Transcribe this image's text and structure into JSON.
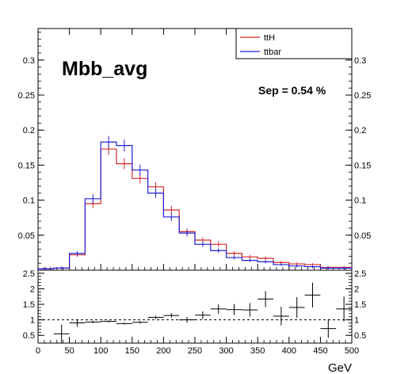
{
  "chart_data": {
    "type": "histogram",
    "title": "Mbb_avg",
    "annotation": "Sep = 0.54 %",
    "xlabel": "GeV",
    "legend": {
      "placement": "top-right",
      "entries": [
        {
          "name": "ttH",
          "color": "#d62728"
        },
        {
          "name": "ttbar",
          "color": "#1f1fd6"
        }
      ]
    },
    "x_range": [
      0,
      500
    ],
    "bin_width": 25,
    "bin_edges": [
      0,
      25,
      50,
      75,
      100,
      125,
      150,
      175,
      200,
      225,
      250,
      275,
      300,
      325,
      350,
      375,
      400,
      425,
      450,
      475,
      500
    ],
    "main": {
      "ylim": [
        0,
        0.345
      ],
      "yticks": [
        0.05,
        0.1,
        0.15,
        0.2,
        0.25,
        0.3
      ],
      "ytick_labels": [
        "0.05",
        "0.1",
        "0.15",
        "0.2",
        "0.25",
        "0.3"
      ],
      "series": [
        {
          "name": "ttH",
          "color": "#d62728",
          "values": [
            0.002,
            0.003,
            0.022,
            0.095,
            0.173,
            0.152,
            0.131,
            0.119,
            0.086,
            0.055,
            0.043,
            0.037,
            0.024,
            0.019,
            0.017,
            0.011,
            0.009,
            0.008,
            0.004,
            0.004
          ]
        },
        {
          "name": "ttbar",
          "color": "#1f1fd6",
          "values": [
            0.002,
            0.003,
            0.024,
            0.102,
            0.183,
            0.178,
            0.143,
            0.11,
            0.076,
            0.053,
            0.037,
            0.028,
            0.018,
            0.014,
            0.012,
            0.008,
            0.006,
            0.005,
            0.003,
            0.003
          ]
        }
      ]
    },
    "ratio": {
      "ylim": [
        0.25,
        2.6
      ],
      "yticks": [
        0.5,
        1,
        1.5,
        2,
        2.5
      ],
      "ytick_labels": [
        "0.5",
        "1",
        "1.5",
        "2",
        "2.5"
      ],
      "reference_line": 1,
      "values": [
        null,
        0.55,
        0.9,
        0.93,
        0.95,
        0.88,
        0.92,
        1.08,
        1.14,
        1.0,
        1.15,
        1.35,
        1.33,
        1.32,
        1.67,
        1.12,
        1.4,
        1.8,
        0.72,
        1.35
      ],
      "errors": [
        null,
        0.3,
        0.12,
        0.04,
        0.03,
        0.03,
        0.04,
        0.05,
        0.07,
        0.09,
        0.12,
        0.15,
        0.18,
        0.22,
        0.26,
        0.3,
        0.33,
        0.4,
        0.3,
        0.4
      ]
    },
    "xticks": [
      0,
      50,
      100,
      150,
      200,
      250,
      300,
      350,
      400,
      450,
      500
    ],
    "xtick_labels": [
      "0",
      "50",
      "100",
      "150",
      "200",
      "250",
      "300",
      "350",
      "400",
      "450",
      "500"
    ]
  }
}
